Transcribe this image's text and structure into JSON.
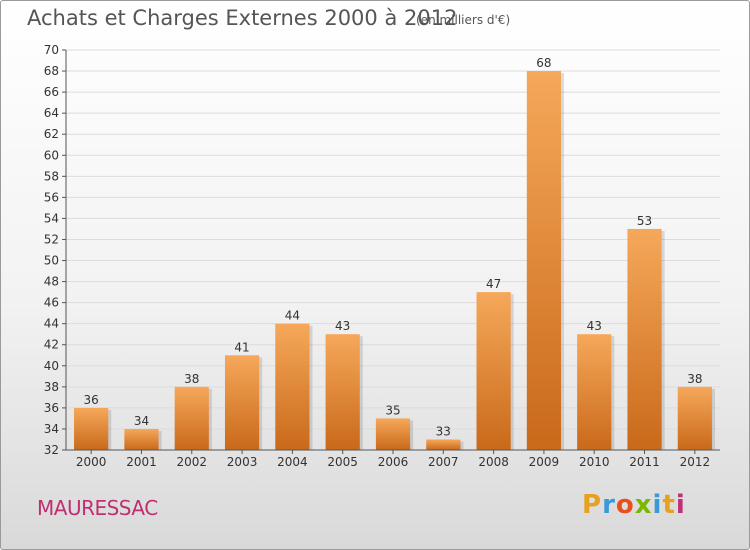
{
  "header": {
    "title": "Achats et Charges Externes 2000 à 2012",
    "subtitle": "(en milliers d'€)"
  },
  "footer": {
    "commune": "MAURESSAC",
    "logo_letters": [
      "P",
      "r",
      "o",
      "x",
      "i",
      "t",
      "i"
    ],
    "logo_colors": [
      "#e8a020",
      "#3a9ad9",
      "#e94e1b",
      "#7ab800",
      "#3a9ad9",
      "#e8a020",
      "#c0307a"
    ]
  },
  "colors": {
    "bar_top": "#f6a85a",
    "bar_bottom": "#c9691a",
    "grid": "#dcdcdc"
  },
  "chart_data": {
    "type": "bar",
    "title": "Achats et Charges Externes 2000 à 2012",
    "subtitle": "(en milliers d'€)",
    "categories": [
      "2000",
      "2001",
      "2002",
      "2003",
      "2004",
      "2005",
      "2006",
      "2007",
      "2008",
      "2009",
      "2010",
      "2011",
      "2012"
    ],
    "values": [
      36,
      34,
      38,
      41,
      44,
      43,
      35,
      33,
      47,
      68,
      43,
      53,
      38
    ],
    "ylim": [
      32,
      70
    ],
    "yticks": [
      32,
      34,
      36,
      38,
      40,
      42,
      44,
      46,
      48,
      50,
      52,
      54,
      56,
      58,
      60,
      62,
      64,
      66,
      68,
      70
    ],
    "grid": true
  }
}
